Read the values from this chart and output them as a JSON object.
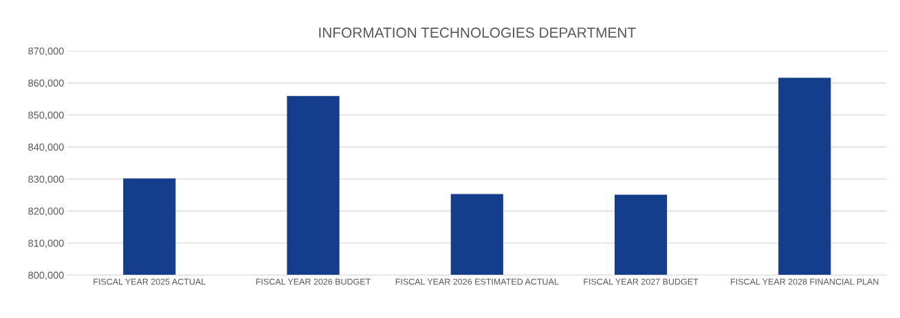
{
  "chart_data": {
    "type": "bar",
    "title": "INFORMATION TECHNOLOGIES DEPARTMENT",
    "categories": [
      "FISCAL YEAR 2025 ACTUAL",
      "FISCAL YEAR 2026 BUDGET",
      "FISCAL YEAR 2026 ESTIMATED ACTUAL",
      "FISCAL YEAR 2027 BUDGET",
      "FISCAL YEAR 2028 FINANCIAL PLAN"
    ],
    "values": [
      830200,
      855900,
      825300,
      825100,
      861600
    ],
    "color": "#143d8b",
    "ylim": [
      800000,
      870000
    ],
    "yticks": [
      {
        "value": 800000,
        "label": "800,000"
      },
      {
        "value": 810000,
        "label": "810,000"
      },
      {
        "value": 820000,
        "label": "820,000"
      },
      {
        "value": 830000,
        "label": "830,000"
      },
      {
        "value": 840000,
        "label": "840,000"
      },
      {
        "value": 850000,
        "label": "850,000"
      },
      {
        "value": 860000,
        "label": "860,000"
      },
      {
        "value": 870000,
        "label": "870,000"
      }
    ],
    "grid": "y"
  }
}
